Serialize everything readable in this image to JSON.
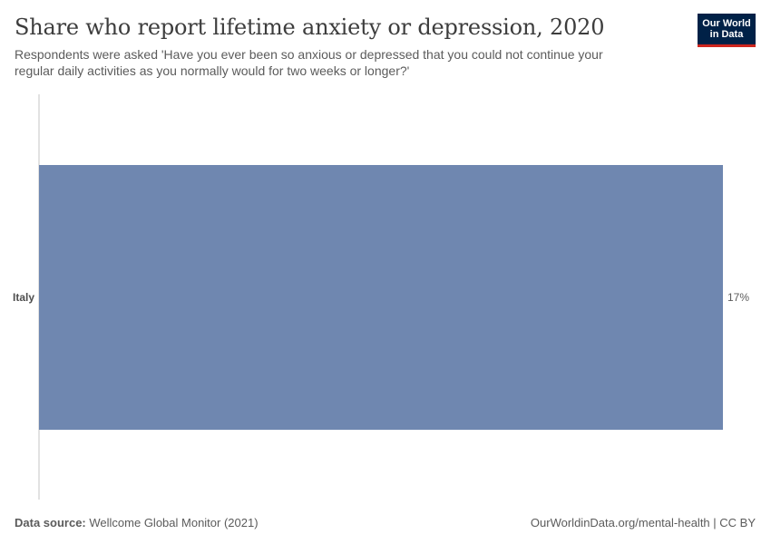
{
  "header": {
    "title": "Share who report lifetime anxiety or depression, 2020",
    "subtitle": "Respondents were asked 'Have you ever been so anxious or depressed that you could not continue your regular daily activities as you normally would for two weeks or longer?'"
  },
  "logo": {
    "line1": "Our World",
    "line2": "in Data",
    "background": "#002147",
    "accent": "#ce261e"
  },
  "chart_data": {
    "type": "bar",
    "orientation": "horizontal",
    "categories": [
      "Italy"
    ],
    "values": [
      17
    ],
    "value_labels": [
      "17%"
    ],
    "unit": "%",
    "xlim": [
      0,
      17
    ],
    "bar_color": "#6f87b0",
    "grid": false
  },
  "footer": {
    "source_label": "Data source:",
    "source_text": "Wellcome Global Monitor (2021)",
    "url_text": "OurWorldinData.org/mental-health | CC BY"
  }
}
